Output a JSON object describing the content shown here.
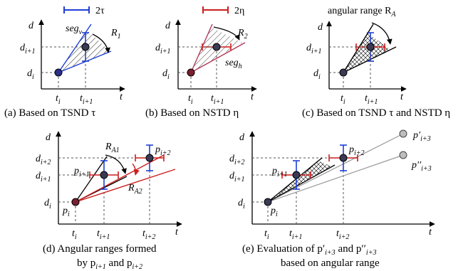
{
  "legend": {
    "tau": "2τ",
    "eta": "2η"
  },
  "colors": {
    "tsnd_bar": "#1f3fd6",
    "nstd_bar": "#cc1f1f",
    "hatch": "#000000"
  },
  "panel_a": {
    "caption": "(a) Based on TSND τ",
    "seg_label": "seg",
    "seg_sub": "v",
    "range_label": "R",
    "range_sub": "1"
  },
  "panel_b": {
    "caption": "(b) Based on NSTD η",
    "seg_label": "seg",
    "seg_sub": "h",
    "range_label": "R",
    "range_sub": "2"
  },
  "panel_c": {
    "caption": "(c) Based on TSND τ and NSTD η",
    "range_title": "angular range R",
    "range_title_sub": "A"
  },
  "panel_d": {
    "caption_line1": "(d) Angular ranges formed",
    "caption_line2": "by p",
    "caption_line2_sub1": "i+1",
    "caption_line2_mid": " and p",
    "caption_line2_sub2": "i+2",
    "range1": "R",
    "range1_sub": "A1",
    "range2": "R",
    "range2_sub": "A2"
  },
  "panel_e": {
    "caption_line1": "(e) Evaluation of  p′",
    "caption_line1_sub1": "i+3",
    "caption_line1_mid": " and p′′",
    "caption_line1_sub2": "i+3",
    "caption_line2": "based on angular range",
    "p_prime": "p′",
    "p_prime_sub": "i+3",
    "p_dprime": "p′′",
    "p_dprime_sub": "i+3"
  },
  "axes": {
    "y": "d",
    "x": "t",
    "di": "d",
    "di_sub": "i",
    "di1_sub": "i+1",
    "di2_sub": "i+2",
    "ti": "t",
    "ti_sub": "i",
    "ti1_sub": "i+1",
    "ti2_sub": "i+2",
    "p": "p",
    "pi_sub": "i",
    "pi1_sub": "i+1",
    "pi2_sub": "i+2"
  }
}
